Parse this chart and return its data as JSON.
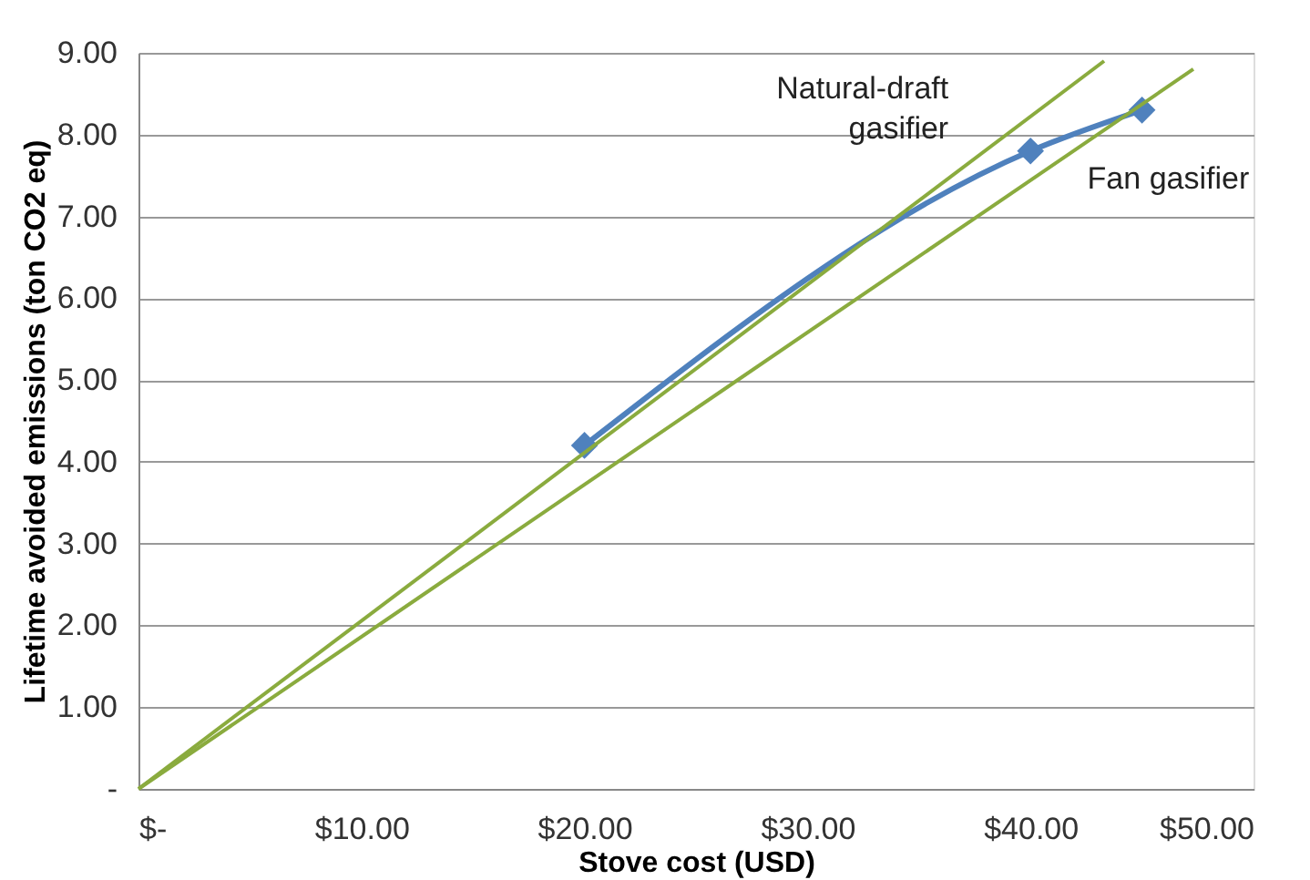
{
  "chart_data": {
    "type": "line",
    "xlabel": "Stove cost (USD)",
    "ylabel": "Lifetime avoided emissions (ton CO2 eq)",
    "xlim": [
      0,
      50
    ],
    "ylim": [
      0,
      9
    ],
    "xticks": [
      {
        "value": 0,
        "label": "$-"
      },
      {
        "value": 10,
        "label": "$10.00"
      },
      {
        "value": 20,
        "label": "$20.00"
      },
      {
        "value": 30,
        "label": "$30.00"
      },
      {
        "value": 40,
        "label": "$40.00"
      },
      {
        "value": 50,
        "label": "$50.00"
      }
    ],
    "yticks": [
      {
        "value": 0,
        "label": "-"
      },
      {
        "value": 1,
        "label": "1.00"
      },
      {
        "value": 2,
        "label": "2.00"
      },
      {
        "value": 3,
        "label": "3.00"
      },
      {
        "value": 4,
        "label": "4.00"
      },
      {
        "value": 5,
        "label": "5.00"
      },
      {
        "value": 6,
        "label": "6.00"
      },
      {
        "value": 7,
        "label": "7.00"
      },
      {
        "value": 8,
        "label": "8.00"
      },
      {
        "value": 9,
        "label": "9.00"
      }
    ],
    "grid": "y",
    "series": [
      {
        "color": "#4f81bd",
        "x": [
          20,
          40,
          45
        ],
        "values": [
          4.2,
          7.8,
          8.3
        ],
        "marker": "diamond",
        "line_style": "solid"
      },
      {
        "color": "#8aab3e",
        "x": [
          0,
          43.3
        ],
        "values": [
          0,
          8.9
        ],
        "marker": "none",
        "line_style": "solid"
      },
      {
        "color": "#8aab3e",
        "x": [
          0,
          47.3
        ],
        "values": [
          0,
          8.8
        ],
        "marker": "none",
        "line_style": "solid"
      }
    ],
    "annotations": [
      {
        "text": "Natural-draft\ngasifier",
        "x": 40,
        "y": 7.8
      },
      {
        "text": "Fan gasifier",
        "x": 45,
        "y": 8.3
      }
    ]
  }
}
